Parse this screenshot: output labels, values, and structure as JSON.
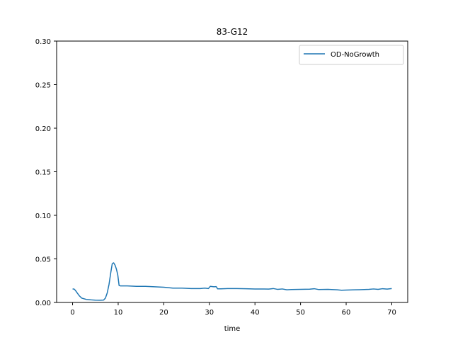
{
  "chart_data": {
    "type": "line",
    "title": "83-G12",
    "xlabel": "time",
    "ylabel": "",
    "xlim": [
      -3.5,
      73.5
    ],
    "ylim": [
      0.0,
      0.3
    ],
    "xticks": [
      0,
      10,
      20,
      30,
      40,
      50,
      60,
      70
    ],
    "yticks": [
      0.0,
      0.05,
      0.1,
      0.15,
      0.2,
      0.25,
      0.3
    ],
    "xtick_labels": [
      "0",
      "10",
      "20",
      "30",
      "40",
      "50",
      "60",
      "70"
    ],
    "ytick_labels": [
      "0.00",
      "0.05",
      "0.10",
      "0.15",
      "0.20",
      "0.25",
      "0.30"
    ],
    "grid": false,
    "legend_position": "top-right",
    "series": [
      {
        "name": "OD-NoGrowth",
        "color": "#1f77b4",
        "x": [
          0,
          0.3,
          0.6,
          1.0,
          1.5,
          2.0,
          3.0,
          4.0,
          5.0,
          6.0,
          6.8,
          7.2,
          7.6,
          8.0,
          8.4,
          8.7,
          9.0,
          9.3,
          9.6,
          9.9,
          10.2,
          10.5,
          12,
          14,
          16,
          18,
          20,
          21,
          22,
          24,
          26,
          28,
          29,
          29.8,
          30.2,
          31.0,
          31.5,
          31.8,
          32.5,
          34,
          36,
          38,
          40,
          42,
          43,
          44,
          45,
          46,
          47,
          48,
          50,
          52,
          53,
          54,
          56,
          58,
          59,
          60,
          62,
          64,
          65,
          66,
          67,
          68,
          69,
          70
        ],
        "y": [
          0.0155,
          0.0155,
          0.014,
          0.011,
          0.0075,
          0.005,
          0.0035,
          0.003,
          0.0026,
          0.0025,
          0.0027,
          0.005,
          0.011,
          0.021,
          0.035,
          0.0445,
          0.0455,
          0.043,
          0.0385,
          0.032,
          0.0195,
          0.019,
          0.019,
          0.0185,
          0.0185,
          0.018,
          0.0175,
          0.017,
          0.0165,
          0.0165,
          0.016,
          0.016,
          0.0165,
          0.016,
          0.0185,
          0.018,
          0.0182,
          0.0157,
          0.0157,
          0.016,
          0.016,
          0.0158,
          0.0155,
          0.0155,
          0.0153,
          0.016,
          0.015,
          0.0155,
          0.0145,
          0.0148,
          0.015,
          0.0152,
          0.0158,
          0.0148,
          0.015,
          0.0145,
          0.014,
          0.0142,
          0.0145,
          0.0148,
          0.015,
          0.0155,
          0.015,
          0.0158,
          0.0153,
          0.016
        ]
      }
    ]
  }
}
